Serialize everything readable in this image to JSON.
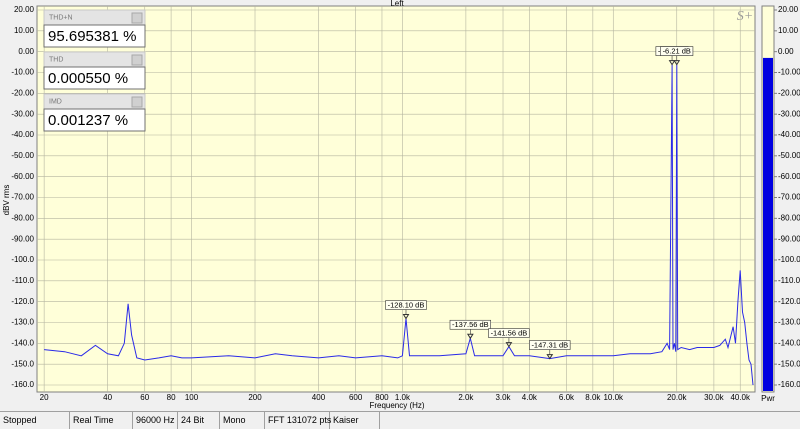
{
  "chart_data": {
    "type": "line",
    "title": "Left",
    "logo": "S+",
    "xlabel": "Frequency (Hz)",
    "ylabel": "dBV rms",
    "xscale": "log",
    "grid": true,
    "xlim": [
      18.5,
      47000
    ],
    "ylim": [
      -160,
      20
    ],
    "xticks": [
      20,
      40,
      60,
      80,
      100,
      200,
      400,
      600,
      800,
      {
        "value": 1000,
        "label": "1.0k"
      },
      {
        "value": 2000,
        "label": "2.0k"
      },
      {
        "value": 3000,
        "label": "3.0k"
      },
      {
        "value": 4000,
        "label": "4.0k"
      },
      {
        "value": 6000,
        "label": "6.0k"
      },
      {
        "value": 8000,
        "label": "8.0k"
      },
      {
        "value": 10000,
        "label": "10.0k"
      },
      {
        "value": 20000,
        "label": "20.0k"
      },
      {
        "value": 30000,
        "label": "30.0k"
      },
      {
        "value": 40000,
        "label": "40.0k"
      }
    ],
    "yticks": [
      {
        "value": 20,
        "label": "20.00"
      },
      {
        "value": 10,
        "label": "10.00"
      },
      {
        "value": 0,
        "label": "0.00"
      },
      {
        "value": -10,
        "label": "-10.00"
      },
      {
        "value": -20,
        "label": "-20.00"
      },
      {
        "value": -30,
        "label": "-30.00"
      },
      {
        "value": -40,
        "label": "-40.00"
      },
      {
        "value": -50,
        "label": "-50.00"
      },
      {
        "value": -60,
        "label": "-60.00"
      },
      {
        "value": -70,
        "label": "-70.00"
      },
      {
        "value": -80,
        "label": "-80.00"
      },
      {
        "value": -90,
        "label": "-90.00"
      },
      {
        "value": -100,
        "label": "-100.0"
      },
      {
        "value": -110,
        "label": "-110.0"
      },
      {
        "value": -120,
        "label": "-120.0"
      },
      {
        "value": -130,
        "label": "-130.0"
      },
      {
        "value": -140,
        "label": "-140.0"
      },
      {
        "value": -150,
        "label": "-150.0"
      },
      {
        "value": -160,
        "label": "-160.0"
      }
    ],
    "y2lim": [
      -160,
      20
    ],
    "y2ticks": [
      {
        "value": 20,
        "label": "20.00"
      },
      {
        "value": 10,
        "label": "10.00"
      },
      {
        "value": 0,
        "label": "0.00"
      },
      {
        "value": -10,
        "label": "-10.00"
      },
      {
        "value": -20,
        "label": "-20.00"
      },
      {
        "value": -30,
        "label": "-30.00"
      },
      {
        "value": -40,
        "label": "-40.00"
      },
      {
        "value": -50,
        "label": "-50.00"
      },
      {
        "value": -60,
        "label": "-60.00"
      },
      {
        "value": -70,
        "label": "-70.00"
      },
      {
        "value": -80,
        "label": "-80.00"
      },
      {
        "value": -90,
        "label": "-90.00"
      },
      {
        "value": -100,
        "label": "-100.0"
      },
      {
        "value": -110,
        "label": "-110.0"
      },
      {
        "value": -120,
        "label": "-120.0"
      },
      {
        "value": -130,
        "label": "-130.0"
      },
      {
        "value": -140,
        "label": "-140.0"
      },
      {
        "value": -150,
        "label": "-150.0"
      },
      {
        "value": -160,
        "label": "-160.0"
      }
    ],
    "meter": {
      "label": "Pwr",
      "value": -3,
      "color": "#0000e0"
    },
    "series": [
      {
        "color": "#2a2ae8",
        "x": [
          20,
          25,
          30,
          35,
          40,
          45,
          48,
          50,
          52,
          55,
          60,
          70,
          80,
          90,
          100,
          150,
          200,
          250,
          300,
          400,
          500,
          600,
          800,
          950,
          1000,
          1040,
          1080,
          1500,
          2000,
          2100,
          2200,
          2600,
          3000,
          3200,
          3400,
          4000,
          5000,
          6000,
          8000,
          10000,
          12000,
          15000,
          17000,
          18000,
          18500,
          19000,
          19200,
          19500,
          19800,
          20000,
          20200,
          21000,
          23000,
          25000,
          28000,
          30000,
          32000,
          34000,
          35000,
          37000,
          38000,
          39000,
          40000,
          41000,
          42000,
          43000,
          44000,
          45000,
          46000
        ],
        "values": [
          -143,
          -144,
          -146,
          -141,
          -145,
          -146,
          -140,
          -121,
          -136,
          -147,
          -148,
          -147,
          -146,
          -147,
          -147,
          -146,
          -147,
          -145,
          -146,
          -147,
          -146,
          -147,
          -146,
          -147,
          -146,
          -128.1,
          -146,
          -146,
          -145,
          -137.56,
          -146,
          -146,
          -146,
          -141.56,
          -146,
          -146,
          -147.31,
          -146,
          -146,
          -146,
          -145,
          -145,
          -144,
          -140,
          -143,
          -6.21,
          -143,
          -140,
          -144,
          -6.21,
          -143,
          -142,
          -143,
          -142,
          -142,
          -142,
          -141,
          -138,
          -142,
          -132,
          -140,
          -120,
          -105,
          -125,
          -130,
          -140,
          -148,
          -150,
          -160
        ]
      }
    ],
    "annotations": [
      {
        "label": "-128.10 dB",
        "x": 1040,
        "value": -128.1
      },
      {
        "label": "-137.56 dB",
        "x": 2100,
        "value": -137.56
      },
      {
        "label": "-141.56 dB",
        "x": 3200,
        "value": -141.56
      },
      {
        "label": "-147.31 dB",
        "x": 5000,
        "value": -147.31
      },
      {
        "label": "-6.21 dB",
        "x": 19000,
        "value": -6.21
      },
      {
        "label": "-6.21 dB",
        "x": 20000,
        "value": -6.21
      }
    ]
  },
  "readouts": [
    {
      "label": "THD+N",
      "value": "95.695381 %"
    },
    {
      "label": "THD",
      "value": "0.000550 %"
    },
    {
      "label": "IMD",
      "value": "0.001237 %"
    }
  ],
  "status_bar": [
    "Stopped",
    "Real Time",
    "96000 Hz",
    "24 Bit",
    "Mono",
    "FFT 131072 pts",
    "Kaiser"
  ]
}
